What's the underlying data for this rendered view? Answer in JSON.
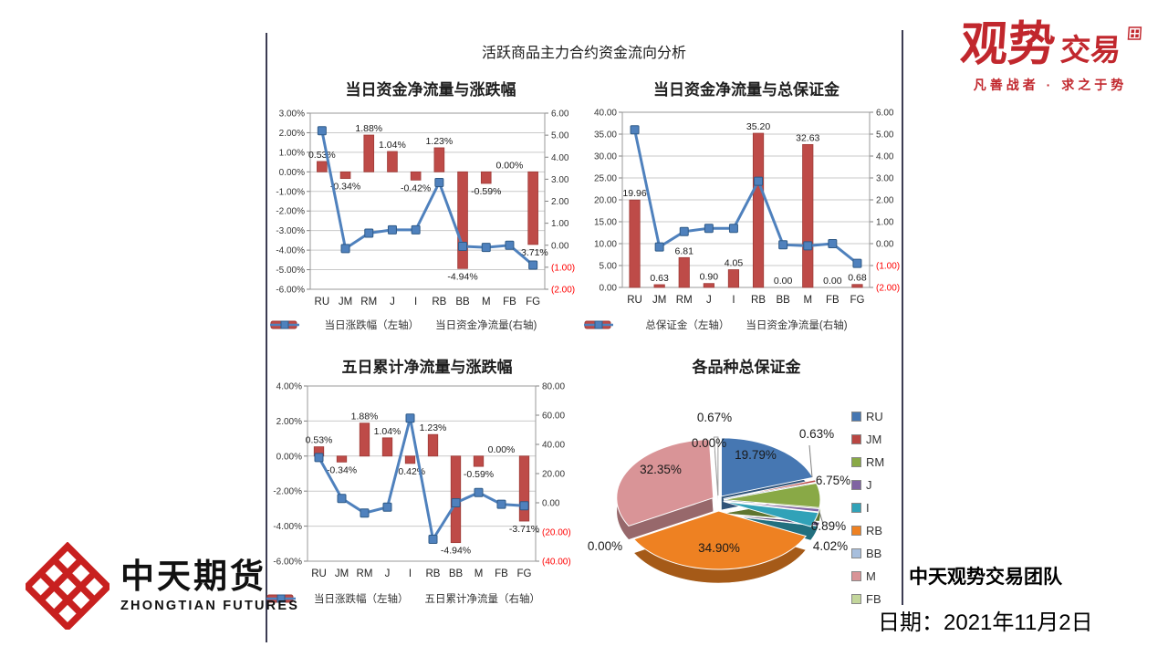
{
  "slide": {
    "title": "活跃商品主力合约资金流向分析"
  },
  "footer": {
    "team": "中天观势交易团队",
    "date": "日期：2021年11月2日"
  },
  "logos": {
    "guanshi": {
      "main": "观势",
      "sub": "交易",
      "tagline": "凡善战者 · 求之于势"
    },
    "zhongtian": {
      "cn": "中天期货",
      "en": "ZHONGTIAN FUTURES"
    }
  },
  "colors": {
    "bar_red": "#BE4B48",
    "bar_red_edge": "#9E3A37",
    "line_blue": "#4F81BD",
    "marker_edge": "#2F5A87",
    "grid": "#C9C9C9",
    "plot_border": "#9A9A9A",
    "axis_text": "#333333",
    "axis_negative": "#FF0000",
    "brand_red": "#C1272D"
  },
  "chart_data": [
    {
      "id": "daily-flow-vs-change",
      "type": "combo_bar_line",
      "title": "当日资金净流量与涨跌幅",
      "categories": [
        "RU",
        "JM",
        "RM",
        "J",
        "I",
        "RB",
        "BB",
        "M",
        "FB",
        "FG"
      ],
      "bar_series": {
        "name": "当日涨跌幅（左轴）",
        "values": [
          0.53,
          -0.34,
          1.88,
          1.04,
          -0.42,
          1.23,
          -4.94,
          -0.59,
          0.0,
          -3.71
        ],
        "data_labels": [
          "0.53%",
          "-0.34%",
          "1.88%",
          "1.04%",
          "-0.42%",
          "1.23%",
          "-4.94%",
          "-0.59%",
          "0.00%",
          "-3.71%"
        ]
      },
      "line_series": {
        "name": "当日资金净流量(右轴)",
        "values": [
          5.2,
          -0.15,
          0.55,
          0.7,
          0.7,
          2.85,
          -0.05,
          -0.1,
          0,
          -0.9
        ]
      },
      "left_axis": {
        "min": -6,
        "max": 3,
        "tick_values": [
          3,
          2,
          1,
          0,
          -1,
          -2,
          -3,
          -4,
          -5,
          -6
        ],
        "tick_labels": [
          "3.00%",
          "2.00%",
          "1.00%",
          "0.00%",
          "-1.00%",
          "-2.00%",
          "-3.00%",
          "-4.00%",
          "-5.00%",
          "-6.00%"
        ]
      },
      "right_axis": {
        "min": -2,
        "max": 6,
        "tick_values": [
          6,
          5,
          4,
          3,
          2,
          1,
          0,
          -1,
          -2
        ],
        "tick_labels": [
          "6.00",
          "5.00",
          "4.00",
          "3.00",
          "2.00",
          "1.00",
          "0.00",
          "(1.00)",
          "(2.00)"
        ]
      }
    },
    {
      "id": "daily-flow-vs-margin",
      "type": "combo_bar_line",
      "title": "当日资金净流量与总保证金",
      "categories": [
        "RU",
        "JM",
        "RM",
        "J",
        "I",
        "RB",
        "BB",
        "M",
        "FB",
        "FG"
      ],
      "bar_series": {
        "name": "总保证金（左轴）",
        "values": [
          19.96,
          0.63,
          6.81,
          0.9,
          4.05,
          35.2,
          0.0,
          32.63,
          0.0,
          0.68
        ],
        "data_labels": [
          "19.96",
          "0.63",
          "6.81",
          "0.90",
          "4.05",
          "35.20",
          "0.00",
          "32.63",
          "0.00",
          "0.68"
        ]
      },
      "line_series": {
        "name": "当日资金净流量(右轴)",
        "values": [
          5.2,
          -0.15,
          0.55,
          0.7,
          0.7,
          2.85,
          -0.05,
          -0.1,
          0,
          -0.9
        ]
      },
      "left_axis": {
        "min": 0,
        "max": 40,
        "tick_values": [
          40,
          35,
          30,
          25,
          20,
          15,
          10,
          5,
          0
        ],
        "tick_labels": [
          "40.00",
          "35.00",
          "30.00",
          "25.00",
          "20.00",
          "15.00",
          "10.00",
          "5.00",
          "0.00"
        ]
      },
      "right_axis": {
        "min": -2,
        "max": 6,
        "tick_values": [
          6,
          5,
          4,
          3,
          2,
          1,
          0,
          -1,
          -2
        ],
        "tick_labels": [
          "6.00",
          "5.00",
          "4.00",
          "3.00",
          "2.00",
          "1.00",
          "0.00",
          "(1.00)",
          "(2.00)"
        ]
      }
    },
    {
      "id": "five-day-flow-vs-change",
      "type": "combo_bar_line",
      "title": "五日累计净流量与涨跌幅",
      "categories": [
        "RU",
        "JM",
        "RM",
        "J",
        "I",
        "RB",
        "BB",
        "M",
        "FB",
        "FG"
      ],
      "bar_series": {
        "name": "当日涨跌幅（左轴）",
        "values": [
          0.53,
          -0.34,
          1.88,
          1.04,
          -0.42,
          1.23,
          -4.94,
          -0.59,
          0.0,
          -3.71
        ],
        "data_labels": [
          "0.53%",
          "-0.34%",
          "1.88%",
          "1.04%",
          "-0.42%",
          "1.23%",
          "-4.94%",
          "-0.59%",
          "0.00%",
          "-3.71%"
        ]
      },
      "line_series": {
        "name": "五日累计净流量（右轴）",
        "values": [
          31,
          3,
          -7,
          -3,
          58,
          -25,
          0,
          7,
          -1,
          -2
        ]
      },
      "left_axis": {
        "min": -6,
        "max": 4,
        "tick_values": [
          4,
          2,
          0,
          -2,
          -4,
          -6
        ],
        "tick_labels": [
          "4.00%",
          "2.00%",
          "0.00%",
          "-2.00%",
          "-4.00%",
          "-6.00%"
        ]
      },
      "right_axis": {
        "min": -40,
        "max": 80,
        "tick_values": [
          80,
          60,
          40,
          20,
          0,
          -20,
          -40
        ],
        "tick_labels": [
          "80.00",
          "60.00",
          "40.00",
          "20.00",
          "0.00",
          "(20.00)",
          "(40.00)"
        ]
      }
    },
    {
      "id": "margin-by-variety",
      "type": "pie3d",
      "title": "各品种总保证金",
      "labels": [
        "RU",
        "JM",
        "RM",
        "J",
        "I",
        "RB",
        "BB",
        "M",
        "FB",
        "FG"
      ],
      "values_pct": [
        19.79,
        0.63,
        6.75,
        0.89,
        4.02,
        34.9,
        0.0,
        32.35,
        0.0,
        0.67
      ],
      "slice_labels": [
        "19.79%",
        "0.63%",
        "6.75%",
        "0.89%",
        "4.02%",
        "34.90%",
        "0.00%",
        "32.35%",
        "0.00%",
        "0.67%"
      ],
      "colors": [
        "#4677B2",
        "#B94642",
        "#89A946",
        "#8064A2",
        "#31A2B8",
        "#EE8122",
        "#A8BFDD",
        "#D99497",
        "#C3D69B",
        "#FFFFFF"
      ],
      "colors_dark": [
        "#2F5379",
        "#7E302E",
        "#5F7530",
        "#574570",
        "#22707F",
        "#A55A18",
        "#7490AF",
        "#97686B",
        "#87975C",
        "#D6D6D6"
      ],
      "legend": [
        "RU",
        "JM",
        "RM",
        "J",
        "I",
        "RB",
        "BB",
        "M",
        "FB"
      ]
    }
  ]
}
